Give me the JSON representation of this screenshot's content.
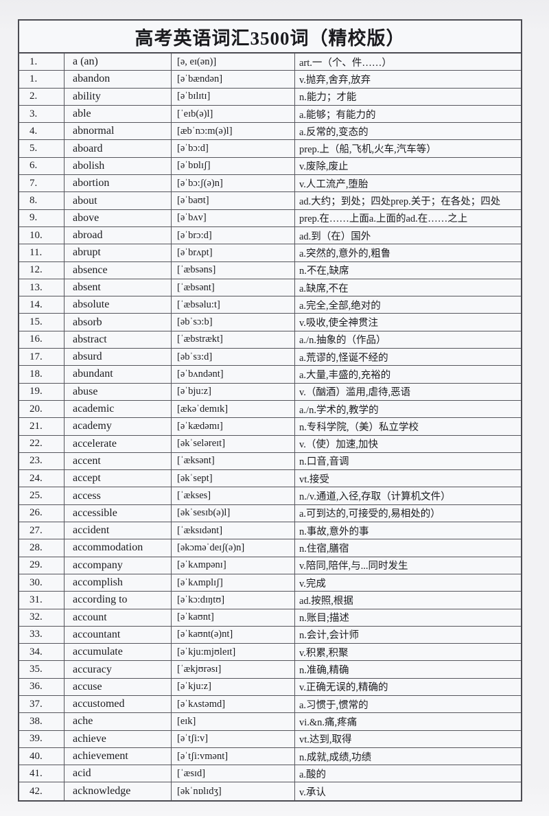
{
  "title": "高考英语词汇3500词（精校版）",
  "table": {
    "rows": [
      {
        "num": "1.",
        "word": "a (an)",
        "phonetic": "[ə, eɪ(ən)]",
        "meaning": "art.一（个、件……）"
      },
      {
        "num": "1.",
        "word": "abandon",
        "phonetic": "[əˈbændən]",
        "meaning": "v.抛弃,舍弃,放弃"
      },
      {
        "num": "2.",
        "word": "ability",
        "phonetic": "[əˈbɪlɪtɪ]",
        "meaning": "n.能力；才能"
      },
      {
        "num": "3.",
        "word": "able",
        "phonetic": "[ˈeɪb(ə)l]",
        "meaning": "a.能够；有能力的"
      },
      {
        "num": "4.",
        "word": "abnormal",
        "phonetic": "[æbˈnɔ:m(ə)l]",
        "meaning": "a.反常的,变态的"
      },
      {
        "num": "5.",
        "word": "aboard",
        "phonetic": "[əˈbɔ:d]",
        "meaning": "prep.上（船,飞机,火车,汽车等）"
      },
      {
        "num": "6.",
        "word": "abolish",
        "phonetic": "[əˈbɒlɪʃ]",
        "meaning": "v.废除,废止"
      },
      {
        "num": "7.",
        "word": "abortion",
        "phonetic": "[əˈbɔ:ʃ(ə)n]",
        "meaning": "v.人工流产,堕胎"
      },
      {
        "num": "8.",
        "word": "about",
        "phonetic": "[əˈbaʊt]",
        "meaning": "ad.大约；到处；四处prep.关于；在各处；四处"
      },
      {
        "num": "9.",
        "word": "above",
        "phonetic": "[əˈbʌv]",
        "meaning": "prep.在……上面a.上面的ad.在……之上"
      },
      {
        "num": "10.",
        "word": "abroad",
        "phonetic": "[əˈbrɔ:d]",
        "meaning": "ad.到（在）国外"
      },
      {
        "num": "11.",
        "word": "abrupt",
        "phonetic": "[əˈbrʌpt]",
        "meaning": "a.突然的,意外的,粗鲁"
      },
      {
        "num": "12.",
        "word": "absence",
        "phonetic": "[ˈæbsəns]",
        "meaning": "n.不在,缺席"
      },
      {
        "num": "13.",
        "word": "absent",
        "phonetic": "[ˈæbsənt]",
        "meaning": "a.缺席,不在"
      },
      {
        "num": "14.",
        "word": "absolute",
        "phonetic": "[ˈæbsəlu:t]",
        "meaning": "a.完全,全部,绝对的"
      },
      {
        "num": "15.",
        "word": "absorb",
        "phonetic": "[əbˈsɔ:b]",
        "meaning": "v.吸收,使全神贯注"
      },
      {
        "num": "16.",
        "word": "abstract",
        "phonetic": "[ˈæbstrækt]",
        "meaning": "a./n.抽象的（作品）"
      },
      {
        "num": "17.",
        "word": "absurd",
        "phonetic": "[əbˈsɜ:d]",
        "meaning": "a.荒谬的,怪诞不经的"
      },
      {
        "num": "18.",
        "word": "abundant",
        "phonetic": "[əˈbʌndənt]",
        "meaning": "a.大量,丰盛的,充裕的"
      },
      {
        "num": "19.",
        "word": "abuse",
        "phonetic": "[əˈbju:z]",
        "meaning": "v.（酗酒）滥用,虐待,恶语"
      },
      {
        "num": "20.",
        "word": "academic",
        "phonetic": "[ækəˈdemɪk]",
        "meaning": "a./n.学术的,教学的"
      },
      {
        "num": "21.",
        "word": "academy",
        "phonetic": "[əˈkædəmɪ]",
        "meaning": "n.专科学院,（美）私立学校"
      },
      {
        "num": "22.",
        "word": "accelerate",
        "phonetic": "[əkˈseləreɪt]",
        "meaning": "v.（使）加速,加快"
      },
      {
        "num": "23.",
        "word": "accent",
        "phonetic": "[ˈæksənt]",
        "meaning": "n.口音,音调"
      },
      {
        "num": "24.",
        "word": "accept",
        "phonetic": "[əkˈsept]",
        "meaning": "vt.接受"
      },
      {
        "num": "25.",
        "word": "access",
        "phonetic": "[ˈækses]",
        "meaning": "n./v.通道,入径,存取（计算机文件）"
      },
      {
        "num": "26.",
        "word": "accessible",
        "phonetic": "[əkˈsesɪb(ə)l]",
        "meaning": "a.可到达的,可接受的,易相处的）"
      },
      {
        "num": "27.",
        "word": "accident",
        "phonetic": "[ˈæksɪdənt]",
        "meaning": "n.事故,意外的事"
      },
      {
        "num": "28.",
        "word": "accommodation",
        "phonetic": "[əkɔməˈdeɪʃ(ə)n]",
        "meaning": "n.住宿,膳宿"
      },
      {
        "num": "29.",
        "word": "accompany",
        "phonetic": "[əˈkʌmpənɪ]",
        "meaning": "v.陪同,陪伴,与...同时发生"
      },
      {
        "num": "30.",
        "word": "accomplish",
        "phonetic": "[əˈkʌmplɪʃ]",
        "meaning": "v.完成"
      },
      {
        "num": "31.",
        "word": "according to",
        "phonetic": "[əˈkɔ:dɪŋtʊ]",
        "meaning": "ad.按照,根据"
      },
      {
        "num": "32.",
        "word": "account",
        "phonetic": "[əˈkaʊnt]",
        "meaning": "n.账目;描述"
      },
      {
        "num": "33.",
        "word": "accountant",
        "phonetic": "[əˈkaʊnt(ə)nt]",
        "meaning": "n.会计,会计师"
      },
      {
        "num": "34.",
        "word": "accumulate",
        "phonetic": "[əˈkju:mjʊleɪt]",
        "meaning": "v.积累,积聚"
      },
      {
        "num": "35.",
        "word": "accuracy",
        "phonetic": "[ˈækjʊrəsɪ]",
        "meaning": "n.准确,精确"
      },
      {
        "num": "36.",
        "word": "accuse",
        "phonetic": "[əˈkju:z]",
        "meaning": "v.正确无误的,精确的"
      },
      {
        "num": "37.",
        "word": "accustomed",
        "phonetic": "[əˈkʌstəmd]",
        "meaning": "a.习惯于,惯常的"
      },
      {
        "num": "38.",
        "word": "ache",
        "phonetic": "[eɪk]",
        "meaning": "vi.&n.痛,疼痛"
      },
      {
        "num": "39.",
        "word": "achieve",
        "phonetic": "[əˈtʃi:v]",
        "meaning": "vt.达到,取得"
      },
      {
        "num": "40.",
        "word": "achievement",
        "phonetic": "[əˈtʃi:vmənt]",
        "meaning": "n.成就,成绩,功绩"
      },
      {
        "num": "41.",
        "word": "acid",
        "phonetic": "[ˈæsɪd]",
        "meaning": "a.酸的"
      },
      {
        "num": "42.",
        "word": "acknowledge",
        "phonetic": "[əkˈnɒlɪdʒ]",
        "meaning": "v.承认"
      }
    ]
  }
}
